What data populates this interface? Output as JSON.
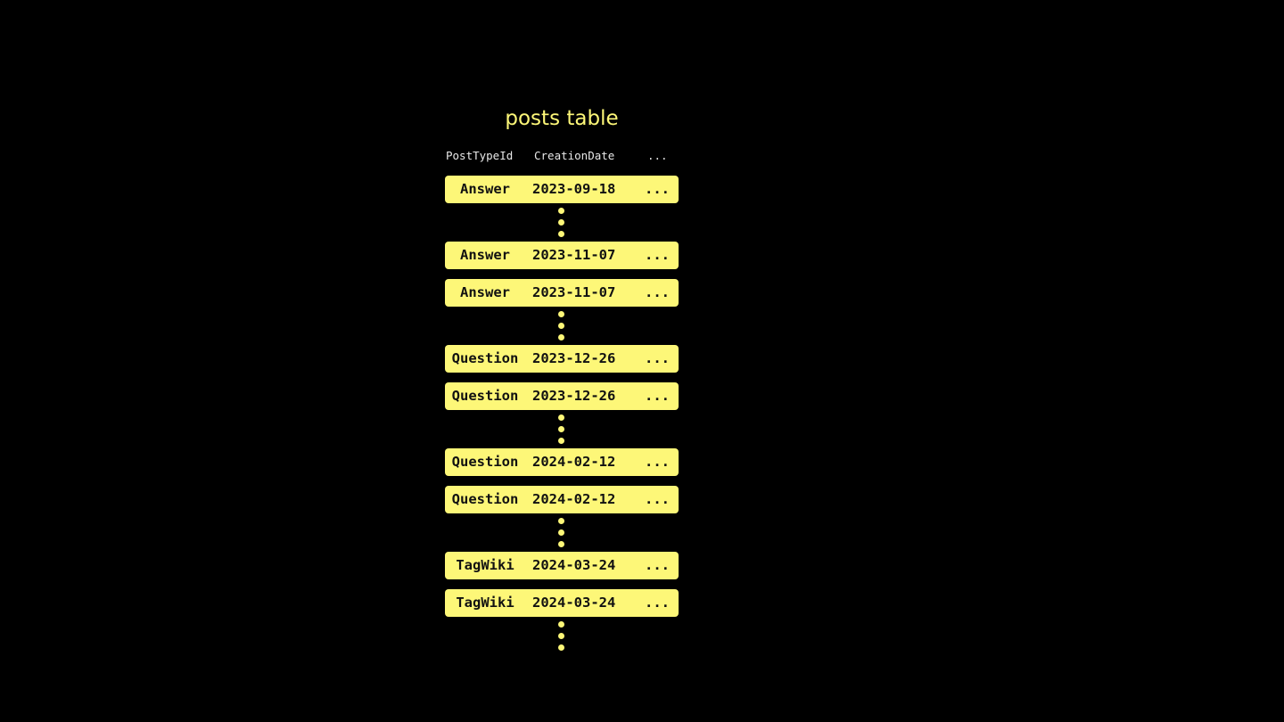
{
  "title": "posts table",
  "headers": [
    "PostTypeId",
    "CreationDate",
    "..."
  ],
  "colors": {
    "accent": "#fdf778",
    "background": "#000000"
  },
  "items": [
    {
      "type": "row",
      "cells": [
        "Answer",
        "2023-09-18",
        "..."
      ]
    },
    {
      "type": "ellipsis"
    },
    {
      "type": "row",
      "cells": [
        "Answer",
        "2023-11-07",
        "..."
      ]
    },
    {
      "type": "row",
      "cells": [
        "Answer",
        "2023-11-07",
        "..."
      ]
    },
    {
      "type": "ellipsis"
    },
    {
      "type": "row",
      "cells": [
        "Question",
        "2023-12-26",
        "..."
      ]
    },
    {
      "type": "row",
      "cells": [
        "Question",
        "2023-12-26",
        "..."
      ]
    },
    {
      "type": "ellipsis"
    },
    {
      "type": "row",
      "cells": [
        "Question",
        "2024-02-12",
        "..."
      ]
    },
    {
      "type": "row",
      "cells": [
        "Question",
        "2024-02-12",
        "..."
      ]
    },
    {
      "type": "ellipsis"
    },
    {
      "type": "row",
      "cells": [
        "TagWiki",
        "2024-03-24",
        "..."
      ]
    },
    {
      "type": "row",
      "cells": [
        "TagWiki",
        "2024-03-24",
        "..."
      ]
    },
    {
      "type": "ellipsis"
    }
  ]
}
